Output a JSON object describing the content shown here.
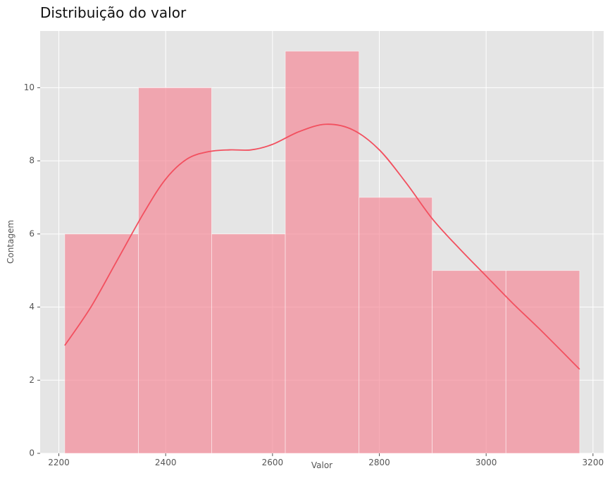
{
  "chart_data": {
    "type": "bar",
    "subtype": "histogram",
    "title": "Distribuição do valor",
    "xlabel": "Valor",
    "ylabel": "Contagem",
    "bins": [
      {
        "start": 2211,
        "end": 2349,
        "count": 6
      },
      {
        "start": 2349,
        "end": 2486,
        "count": 10
      },
      {
        "start": 2486,
        "end": 2624,
        "count": 6
      },
      {
        "start": 2624,
        "end": 2762,
        "count": 11
      },
      {
        "start": 2762,
        "end": 2899,
        "count": 7
      },
      {
        "start": 2899,
        "end": 3037,
        "count": 5
      },
      {
        "start": 3037,
        "end": 3175,
        "count": 5
      }
    ],
    "kde_curve": {
      "x": [
        2211,
        2260,
        2310,
        2360,
        2400,
        2440,
        2480,
        2520,
        2560,
        2600,
        2650,
        2700,
        2750,
        2800,
        2850,
        2900,
        2950,
        3000,
        3050,
        3100,
        3175
      ],
      "y": [
        2.95,
        4.0,
        5.3,
        6.6,
        7.5,
        8.05,
        8.25,
        8.3,
        8.3,
        8.45,
        8.8,
        9.0,
        8.85,
        8.3,
        7.4,
        6.4,
        5.6,
        4.85,
        4.1,
        3.4,
        2.3
      ]
    },
    "xlim": [
      2165,
      3220
    ],
    "ylim": [
      0,
      11.55
    ],
    "xticks": [
      2200,
      2400,
      2600,
      2800,
      3000,
      3200
    ],
    "yticks": [
      0,
      2,
      4,
      6,
      8,
      10
    ],
    "grid": true,
    "colors": {
      "background": "#e5e5e5",
      "bar_fill": "#f58a98",
      "bar_opacity": 0.7,
      "kde_line": "#f2505f",
      "grid": "#ffffff",
      "text": "#555555"
    }
  }
}
